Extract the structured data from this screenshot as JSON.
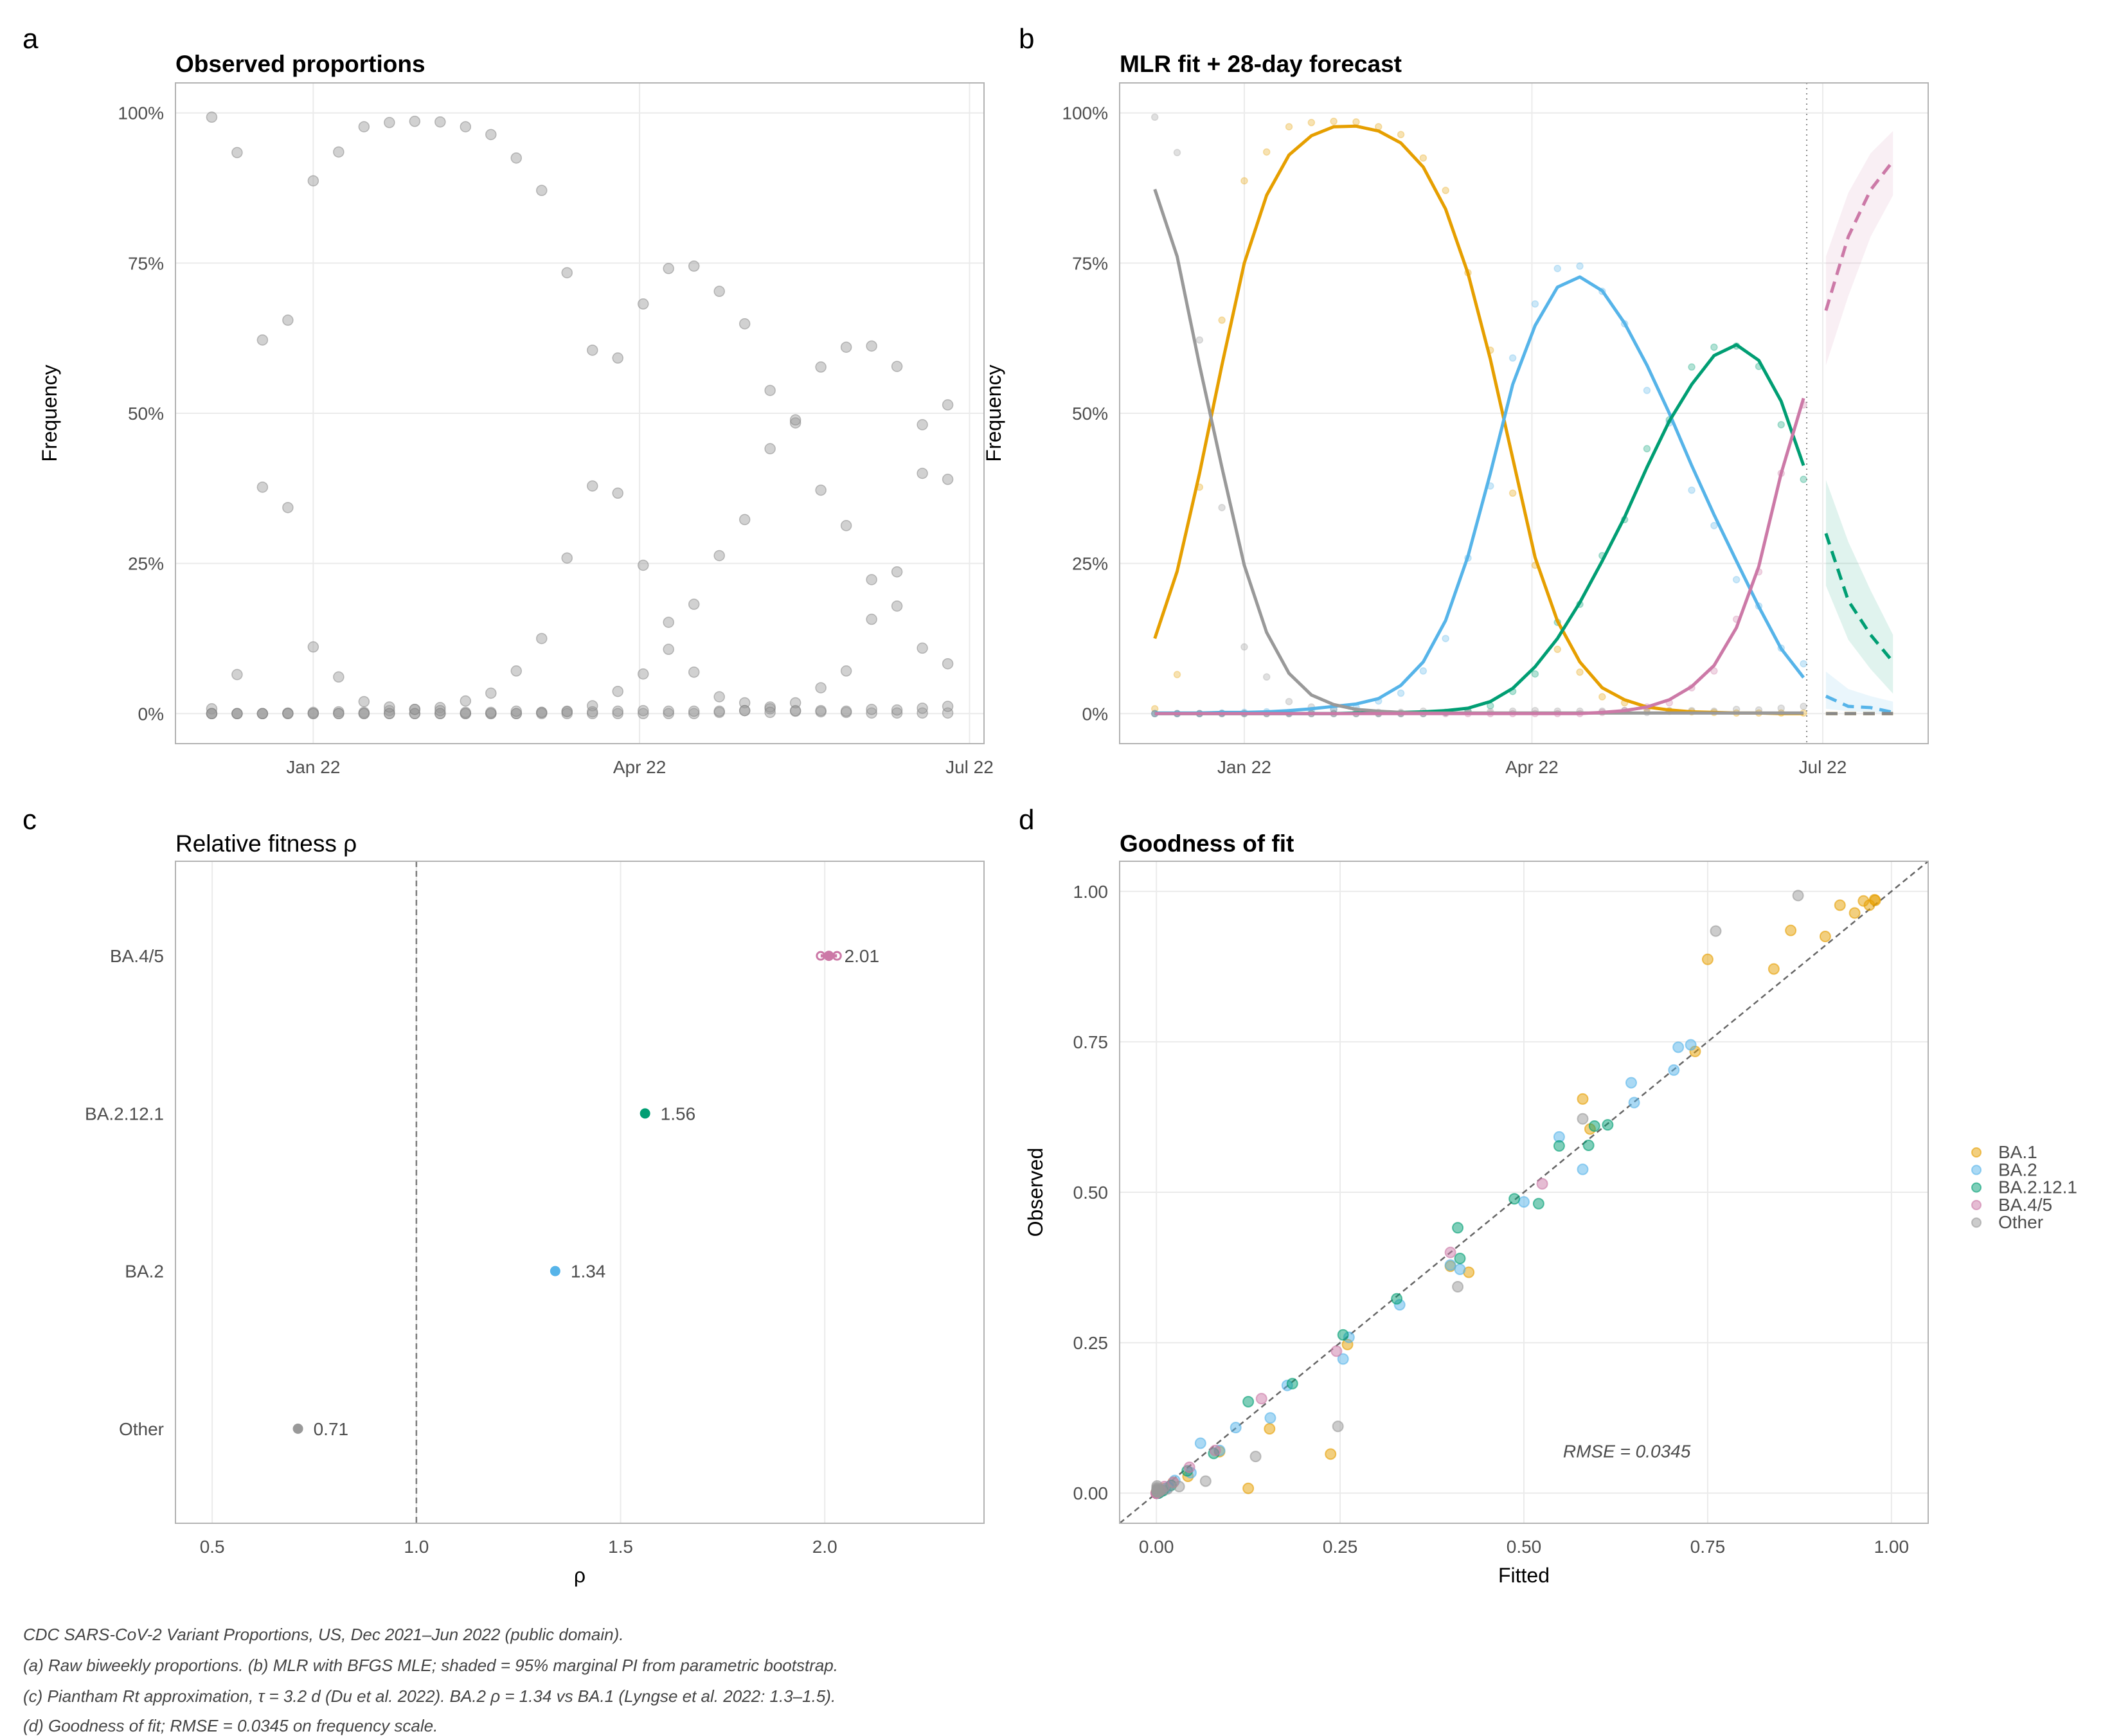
{
  "panel_labels": [
    "a",
    "b",
    "c",
    "d"
  ],
  "colors": {
    "BA.1": "#E69F00",
    "BA.2": "#56B4E9",
    "BA.2.12.1": "#009E73",
    "BA.4/5": "#CC79A7",
    "Other": "#999999",
    "observed_grey": "#999999"
  },
  "captions": [
    "CDC SARS-CoV-2 Variant Proportions, US, Dec 2021–Jun 2022 (public domain).",
    "(a) Raw biweekly proportions. (b) MLR with BFGS MLE; shaded = 95% marginal PI from parametric bootstrap.",
    "(c) Piantham Rt approximation, τ = 3.2 d (Du et al. 2022). BA.2 ρ = 1.34 vs BA.1 (Lyngse et al. 2022: 1.3–1.5).",
    "(d) Goodness of fit; RMSE = 0.0345 on frequency scale."
  ],
  "chart_data": [
    {
      "type": "scatter",
      "title": "Observed proportions",
      "xlabel": "",
      "ylabel": "Frequency",
      "x_ticks": [
        {
          "date": "2022-01-01",
          "label": "Jan 22"
        },
        {
          "date": "2022-04-01",
          "label": "Apr 22"
        },
        {
          "date": "2022-07-01",
          "label": "Jul 22"
        }
      ],
      "y_ticks": [
        {
          "value": 0,
          "label": "0%"
        },
        {
          "value": 0.25,
          "label": "25%"
        },
        {
          "value": 0.5,
          "label": "50%"
        },
        {
          "value": 0.75,
          "label": "75%"
        },
        {
          "value": 1,
          "label": "100%"
        }
      ],
      "xlim": [
        "2021-11-24",
        "2022-07-05"
      ],
      "ylim": [
        -0.05,
        1.05
      ],
      "grid": true,
      "dates": [
        "2021-12-04",
        "2021-12-11",
        "2021-12-18",
        "2021-12-25",
        "2022-01-01",
        "2022-01-08",
        "2022-01-15",
        "2022-01-22",
        "2022-01-29",
        "2022-02-05",
        "2022-02-12",
        "2022-02-19",
        "2022-02-26",
        "2022-03-05",
        "2022-03-12",
        "2022-03-19",
        "2022-03-26",
        "2022-04-02",
        "2022-04-09",
        "2022-04-16",
        "2022-04-23",
        "2022-04-30",
        "2022-05-07",
        "2022-05-14",
        "2022-05-21",
        "2022-05-28",
        "2022-06-04",
        "2022-06-11",
        "2022-06-18",
        "2022-06-25"
      ],
      "series": [
        {
          "name": "BA.1",
          "observed": [
            0.008,
            0.065,
            0.377,
            0.655,
            0.887,
            0.935,
            0.977,
            0.984,
            0.986,
            0.985,
            0.977,
            0.964,
            0.925,
            0.871,
            0.734,
            0.605,
            0.367,
            0.247,
            0.107,
            0.069,
            0.028,
            0.018,
            0.008,
            0.004,
            0.003,
            0.002,
            0.001,
            0.001,
            0.001,
            0.001
          ]
        },
        {
          "name": "BA.2",
          "observed": [
            0,
            0,
            0,
            0.001,
            0.002,
            0.003,
            0.002,
            0.005,
            0.007,
            0.01,
            0.021,
            0.034,
            0.071,
            0.125,
            0.259,
            0.379,
            0.592,
            0.682,
            0.741,
            0.745,
            0.703,
            0.649,
            0.538,
            0.484,
            0.372,
            0.313,
            0.223,
            0.179,
            0.109,
            0.083
          ]
        },
        {
          "name": "BA.2.12.1",
          "observed": [
            0,
            0,
            0,
            0,
            0,
            0,
            0,
            0,
            0,
            0,
            0,
            0,
            0,
            0.002,
            0.004,
            0.013,
            0.037,
            0.066,
            0.152,
            0.182,
            0.263,
            0.323,
            0.441,
            0.489,
            0.577,
            0.61,
            0.612,
            0.578,
            0.481,
            0.39
          ]
        },
        {
          "name": "BA.4/5",
          "observed": [
            0,
            0,
            0,
            0,
            0,
            0,
            0,
            0,
            0,
            0,
            0,
            0,
            0,
            0,
            0,
            0,
            0,
            0,
            0,
            0,
            0.002,
            0.005,
            0.011,
            0.018,
            0.043,
            0.071,
            0.157,
            0.236,
            0.4,
            0.514
          ]
        },
        {
          "name": "Other",
          "observed": [
            0.993,
            0.934,
            0.622,
            0.343,
            0.111,
            0.061,
            0.02,
            0.011,
            0.007,
            0.005,
            0.002,
            0.002,
            0.004,
            0.002,
            0.003,
            0.003,
            0.004,
            0.005,
            0.004,
            0.004,
            0.004,
            0.005,
            0.002,
            0.005,
            0.005,
            0.004,
            0.007,
            0.006,
            0.009,
            0.012
          ]
        }
      ]
    },
    {
      "type": "line",
      "title": "MLR fit + 28-day forecast",
      "xlabel": "",
      "ylabel": "Frequency",
      "x_ticks": [
        {
          "date": "2022-01-01",
          "label": "Jan 22"
        },
        {
          "date": "2022-04-01",
          "label": "Apr 22"
        },
        {
          "date": "2022-07-01",
          "label": "Jul 22"
        }
      ],
      "y_ticks": [
        {
          "value": 0,
          "label": "0%"
        },
        {
          "value": 0.25,
          "label": "25%"
        },
        {
          "value": 0.5,
          "label": "50%"
        },
        {
          "value": 0.75,
          "label": "75%"
        },
        {
          "value": 1,
          "label": "100%"
        }
      ],
      "xlim": [
        "2021-11-23",
        "2022-08-03"
      ],
      "ylim": [
        -0.05,
        1.05
      ],
      "grid": true,
      "forecast_origin": "2022-06-26",
      "forecast_dates": [
        "2022-07-02",
        "2022-07-09",
        "2022-07-16",
        "2022-07-23"
      ],
      "series": [
        {
          "name": "BA.1",
          "fitted": [
            0.125,
            0.237,
            0.4,
            0.58,
            0.75,
            0.863,
            0.93,
            0.962,
            0.977,
            0.978,
            0.97,
            0.95,
            0.91,
            0.84,
            0.733,
            0.59,
            0.425,
            0.26,
            0.154,
            0.086,
            0.043,
            0.023,
            0.011,
            0.006,
            0.003,
            0.002,
            0.001,
            0.001,
            0,
            0
          ],
          "forecast": [
            0,
            0,
            0,
            0
          ],
          "lo": [
            0,
            0,
            0,
            0
          ],
          "hi": [
            0,
            0,
            0,
            0
          ]
        },
        {
          "name": "BA.2",
          "fitted": [
            0.001,
            0.001,
            0.001,
            0.002,
            0.002,
            0.003,
            0.005,
            0.008,
            0.012,
            0.016,
            0.025,
            0.047,
            0.086,
            0.155,
            0.262,
            0.4,
            0.548,
            0.646,
            0.71,
            0.727,
            0.704,
            0.65,
            0.58,
            0.5,
            0.413,
            0.331,
            0.254,
            0.178,
            0.108,
            0.06
          ],
          "forecast": [
            0.029,
            0.012,
            0.01,
            0.002
          ],
          "lo": [
            0.008,
            0.004,
            0.002,
            0
          ],
          "hi": [
            0.07,
            0.041,
            0.029,
            0.02
          ]
        },
        {
          "name": "BA.2.12.1",
          "fitted": [
            0,
            0,
            0,
            0,
            0,
            0,
            0,
            0,
            0,
            0.001,
            0.001,
            0.002,
            0.003,
            0.005,
            0.009,
            0.02,
            0.042,
            0.078,
            0.125,
            0.185,
            0.254,
            0.327,
            0.41,
            0.487,
            0.548,
            0.596,
            0.614,
            0.588,
            0.52,
            0.413
          ],
          "forecast": [
            0.3,
            0.188,
            0.131,
            0.086
          ],
          "lo": [
            0.213,
            0.123,
            0.074,
            0.033
          ],
          "hi": [
            0.389,
            0.286,
            0.205,
            0.131
          ]
        },
        {
          "name": "BA.4/5",
          "fitted": [
            0,
            0,
            0,
            0,
            0,
            0,
            0,
            0,
            0,
            0,
            0,
            0,
            0,
            0,
            0,
            0,
            0,
            0,
            0,
            0,
            0.002,
            0.005,
            0.011,
            0.023,
            0.045,
            0.08,
            0.143,
            0.245,
            0.4,
            0.525
          ],
          "forecast": [
            0.671,
            0.794,
            0.872,
            0.92
          ],
          "lo": [
            0.58,
            0.695,
            0.794,
            0.863
          ],
          "hi": [
            0.761,
            0.867,
            0.933,
            0.97
          ]
        },
        {
          "name": "Other",
          "fitted": [
            0.873,
            0.761,
            0.58,
            0.41,
            0.247,
            0.135,
            0.067,
            0.031,
            0.015,
            0.007,
            0.004,
            0.002,
            0.001,
            0.001,
            0.001,
            0.001,
            0.001,
            0.001,
            0.001,
            0.001,
            0.001,
            0.001,
            0.001,
            0.001,
            0.001,
            0.001,
            0.001,
            0.001,
            0.001,
            0.001
          ],
          "forecast": [
            0,
            0,
            0,
            0
          ],
          "lo": [
            0,
            0,
            0,
            0
          ],
          "hi": [
            0,
            0,
            0,
            0
          ]
        }
      ]
    },
    {
      "type": "scatter",
      "title": "Relative fitness ρ",
      "xlabel": "ρ",
      "ylabel": "",
      "categories": [
        "Other",
        "BA.2",
        "BA.2.12.1",
        "BA.4/5"
      ],
      "values": [
        0.71,
        1.34,
        1.56,
        2.01
      ],
      "value_labels": [
        "0.71",
        "1.34",
        "1.56",
        "2.01"
      ],
      "ci": [
        null,
        null,
        null,
        [
          1.99,
          2.03
        ]
      ],
      "reference_line": 1.0,
      "x_ticks": [
        {
          "value": 0.5,
          "label": "0.5"
        },
        {
          "value": 1.0,
          "label": "1.0"
        },
        {
          "value": 1.5,
          "label": "1.5"
        },
        {
          "value": 2.0,
          "label": "2.0"
        }
      ],
      "xlim": [
        0.41,
        2.39
      ],
      "grid": true
    },
    {
      "type": "scatter",
      "title": "Goodness of fit",
      "xlabel": "Fitted",
      "ylabel": "Observed",
      "x_ticks": [
        {
          "value": 0,
          "label": "0.00"
        },
        {
          "value": 0.25,
          "label": "0.25"
        },
        {
          "value": 0.5,
          "label": "0.50"
        },
        {
          "value": 0.75,
          "label": "0.75"
        },
        {
          "value": 1,
          "label": "1.00"
        }
      ],
      "y_ticks": [
        {
          "value": 0,
          "label": "0.00"
        },
        {
          "value": 0.25,
          "label": "0.25"
        },
        {
          "value": 0.5,
          "label": "0.50"
        },
        {
          "value": 0.75,
          "label": "0.75"
        },
        {
          "value": 1,
          "label": "1.00"
        }
      ],
      "xlim": [
        -0.05,
        1.05
      ],
      "ylim": [
        -0.05,
        1.05
      ],
      "identity_line": true,
      "annotation": {
        "text": "RMSE = 0.0345",
        "x": 0.64,
        "y": 0.07
      },
      "legend": {
        "position": "right",
        "entries": [
          "BA.1",
          "BA.2",
          "BA.2.12.1",
          "BA.4/5",
          "Other"
        ]
      },
      "grid": true
    }
  ]
}
